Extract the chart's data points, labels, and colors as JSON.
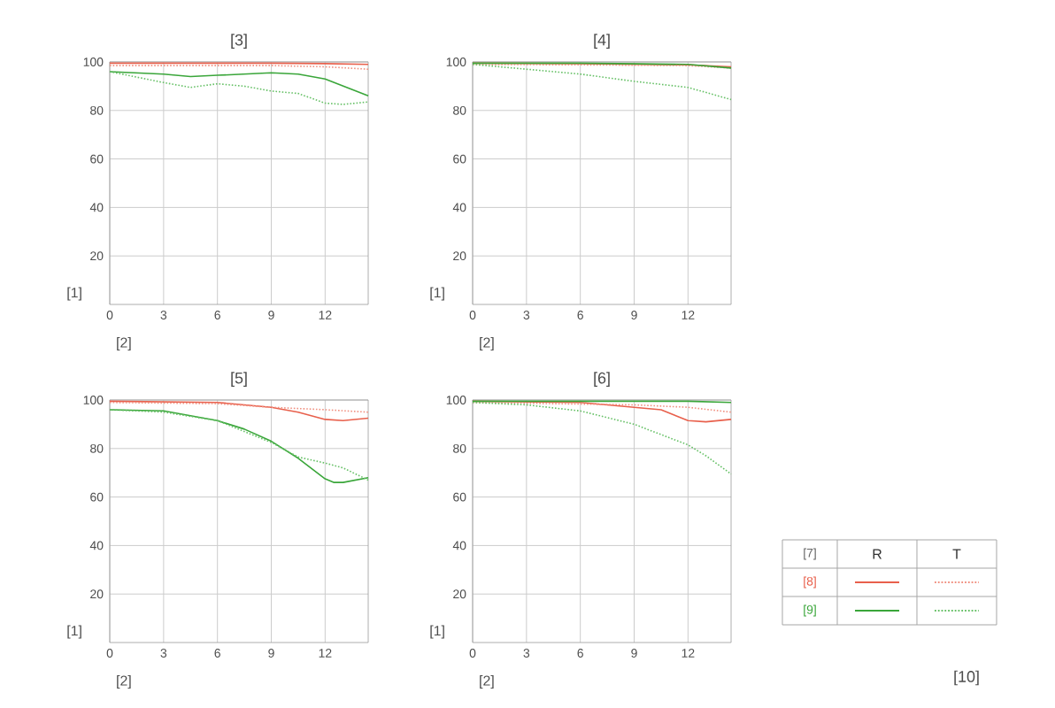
{
  "chart_data": [
    {
      "type": "line",
      "title": "[3]",
      "xlabel": "[2]",
      "ylabel": "[1]",
      "xlim": [
        0,
        14.4
      ],
      "xticks": [
        0,
        3,
        6,
        9,
        12
      ],
      "ylim": [
        0,
        100
      ],
      "yticks": [
        20,
        40,
        60,
        80,
        100
      ],
      "grid": true,
      "series": [
        {
          "color": "#e8604c",
          "line_style": "solid",
          "x": [
            0,
            3,
            6,
            9,
            12,
            14.4
          ],
          "values": [
            99.5,
            99.5,
            99.5,
            99.5,
            99.3,
            99
          ]
        },
        {
          "color": "#f09080",
          "line_style": "dotted",
          "x": [
            0,
            3,
            6,
            9,
            12,
            14.4
          ],
          "values": [
            98.5,
            98.5,
            98.5,
            98.5,
            98,
            97
          ]
        },
        {
          "color": "#3aa63a",
          "line_style": "solid",
          "x": [
            0,
            3,
            4.5,
            6,
            9,
            10.5,
            12,
            14.4
          ],
          "values": [
            96,
            95,
            94,
            94.5,
            95.5,
            95,
            93,
            86
          ]
        },
        {
          "color": "#66c066",
          "line_style": "dotted",
          "x": [
            0,
            3,
            4.5,
            6,
            7.5,
            9,
            10.5,
            12,
            13,
            14.4
          ],
          "values": [
            96,
            91.5,
            89.5,
            91,
            90,
            88,
            87,
            83,
            82.5,
            83.5
          ]
        }
      ]
    },
    {
      "type": "line",
      "title": "[4]",
      "xlabel": "[2]",
      "ylabel": "[1]",
      "xlim": [
        0,
        14.4
      ],
      "xticks": [
        0,
        3,
        6,
        9,
        12
      ],
      "ylim": [
        0,
        100
      ],
      "yticks": [
        20,
        40,
        60,
        80,
        100
      ],
      "grid": true,
      "series": [
        {
          "color": "#e8604c",
          "line_style": "solid",
          "x": [
            0,
            6,
            12,
            14.4
          ],
          "values": [
            99.5,
            99.3,
            98.8,
            98
          ]
        },
        {
          "color": "#f09080",
          "line_style": "dotted",
          "x": [
            0,
            6,
            12,
            14.4
          ],
          "values": [
            99,
            98.8,
            98.5,
            97.5
          ]
        },
        {
          "color": "#3aa63a",
          "line_style": "solid",
          "x": [
            0,
            6,
            12,
            14.4
          ],
          "values": [
            99.5,
            99.5,
            99,
            97.5
          ]
        },
        {
          "color": "#66c066",
          "line_style": "dotted",
          "x": [
            0,
            3,
            6,
            9,
            12,
            14.4
          ],
          "values": [
            99,
            97,
            95,
            92,
            89.5,
            84.5
          ]
        }
      ]
    },
    {
      "type": "line",
      "title": "[5]",
      "xlabel": "[2]",
      "ylabel": "[1]",
      "xlim": [
        0,
        14.4
      ],
      "xticks": [
        0,
        3,
        6,
        9,
        12
      ],
      "ylim": [
        0,
        100
      ],
      "yticks": [
        20,
        40,
        60,
        80,
        100
      ],
      "grid": true,
      "series": [
        {
          "color": "#e8604c",
          "line_style": "solid",
          "x": [
            0,
            6,
            9,
            10.5,
            12,
            13,
            14.4
          ],
          "values": [
            99.5,
            99,
            97,
            95,
            92,
            91.5,
            92.5
          ]
        },
        {
          "color": "#f09080",
          "line_style": "dotted",
          "x": [
            0,
            6,
            9,
            12,
            14.4
          ],
          "values": [
            99,
            98.5,
            97,
            96,
            95
          ]
        },
        {
          "color": "#3aa63a",
          "line_style": "solid",
          "x": [
            0,
            3,
            6,
            7.5,
            9,
            10.5,
            12,
            12.5,
            13,
            14.4
          ],
          "values": [
            96,
            95.5,
            91.5,
            88,
            83,
            76,
            67.5,
            66,
            66,
            68
          ]
        },
        {
          "color": "#66c066",
          "line_style": "dotted",
          "x": [
            0,
            3,
            6,
            9,
            10.5,
            12,
            13,
            14.4
          ],
          "values": [
            96,
            95,
            91.5,
            82.5,
            76.5,
            74,
            72,
            67
          ]
        }
      ]
    },
    {
      "type": "line",
      "title": "[6]",
      "xlabel": "[2]",
      "ylabel": "[1]",
      "xlim": [
        0,
        14.4
      ],
      "xticks": [
        0,
        3,
        6,
        9,
        12
      ],
      "ylim": [
        0,
        100
      ],
      "yticks": [
        20,
        40,
        60,
        80,
        100
      ],
      "grid": true,
      "legend": "right",
      "legend_title": "[7]",
      "annotations": [
        "R",
        "T",
        "[10]"
      ],
      "series": [
        {
          "name": "[8]",
          "color": "#e8604c",
          "line_style": "solid",
          "x": [
            0,
            6,
            9,
            10.5,
            12,
            13,
            14.4
          ],
          "values": [
            99.5,
            99,
            97,
            96,
            91.5,
            91,
            92
          ]
        },
        {
          "color": "#f09080",
          "line_style": "dotted",
          "x": [
            0,
            9,
            12,
            14.4
          ],
          "values": [
            99,
            98,
            97,
            95
          ]
        },
        {
          "name": "[9]",
          "color": "#3aa63a",
          "line_style": "solid",
          "x": [
            0,
            6,
            12,
            14.4
          ],
          "values": [
            99.5,
            99.5,
            99.5,
            99
          ]
        },
        {
          "color": "#66c066",
          "line_style": "dotted",
          "x": [
            0,
            3,
            6,
            9,
            12,
            13,
            14.4
          ],
          "values": [
            99,
            98,
            95.5,
            90,
            81.5,
            77,
            69.5
          ]
        }
      ]
    }
  ]
}
